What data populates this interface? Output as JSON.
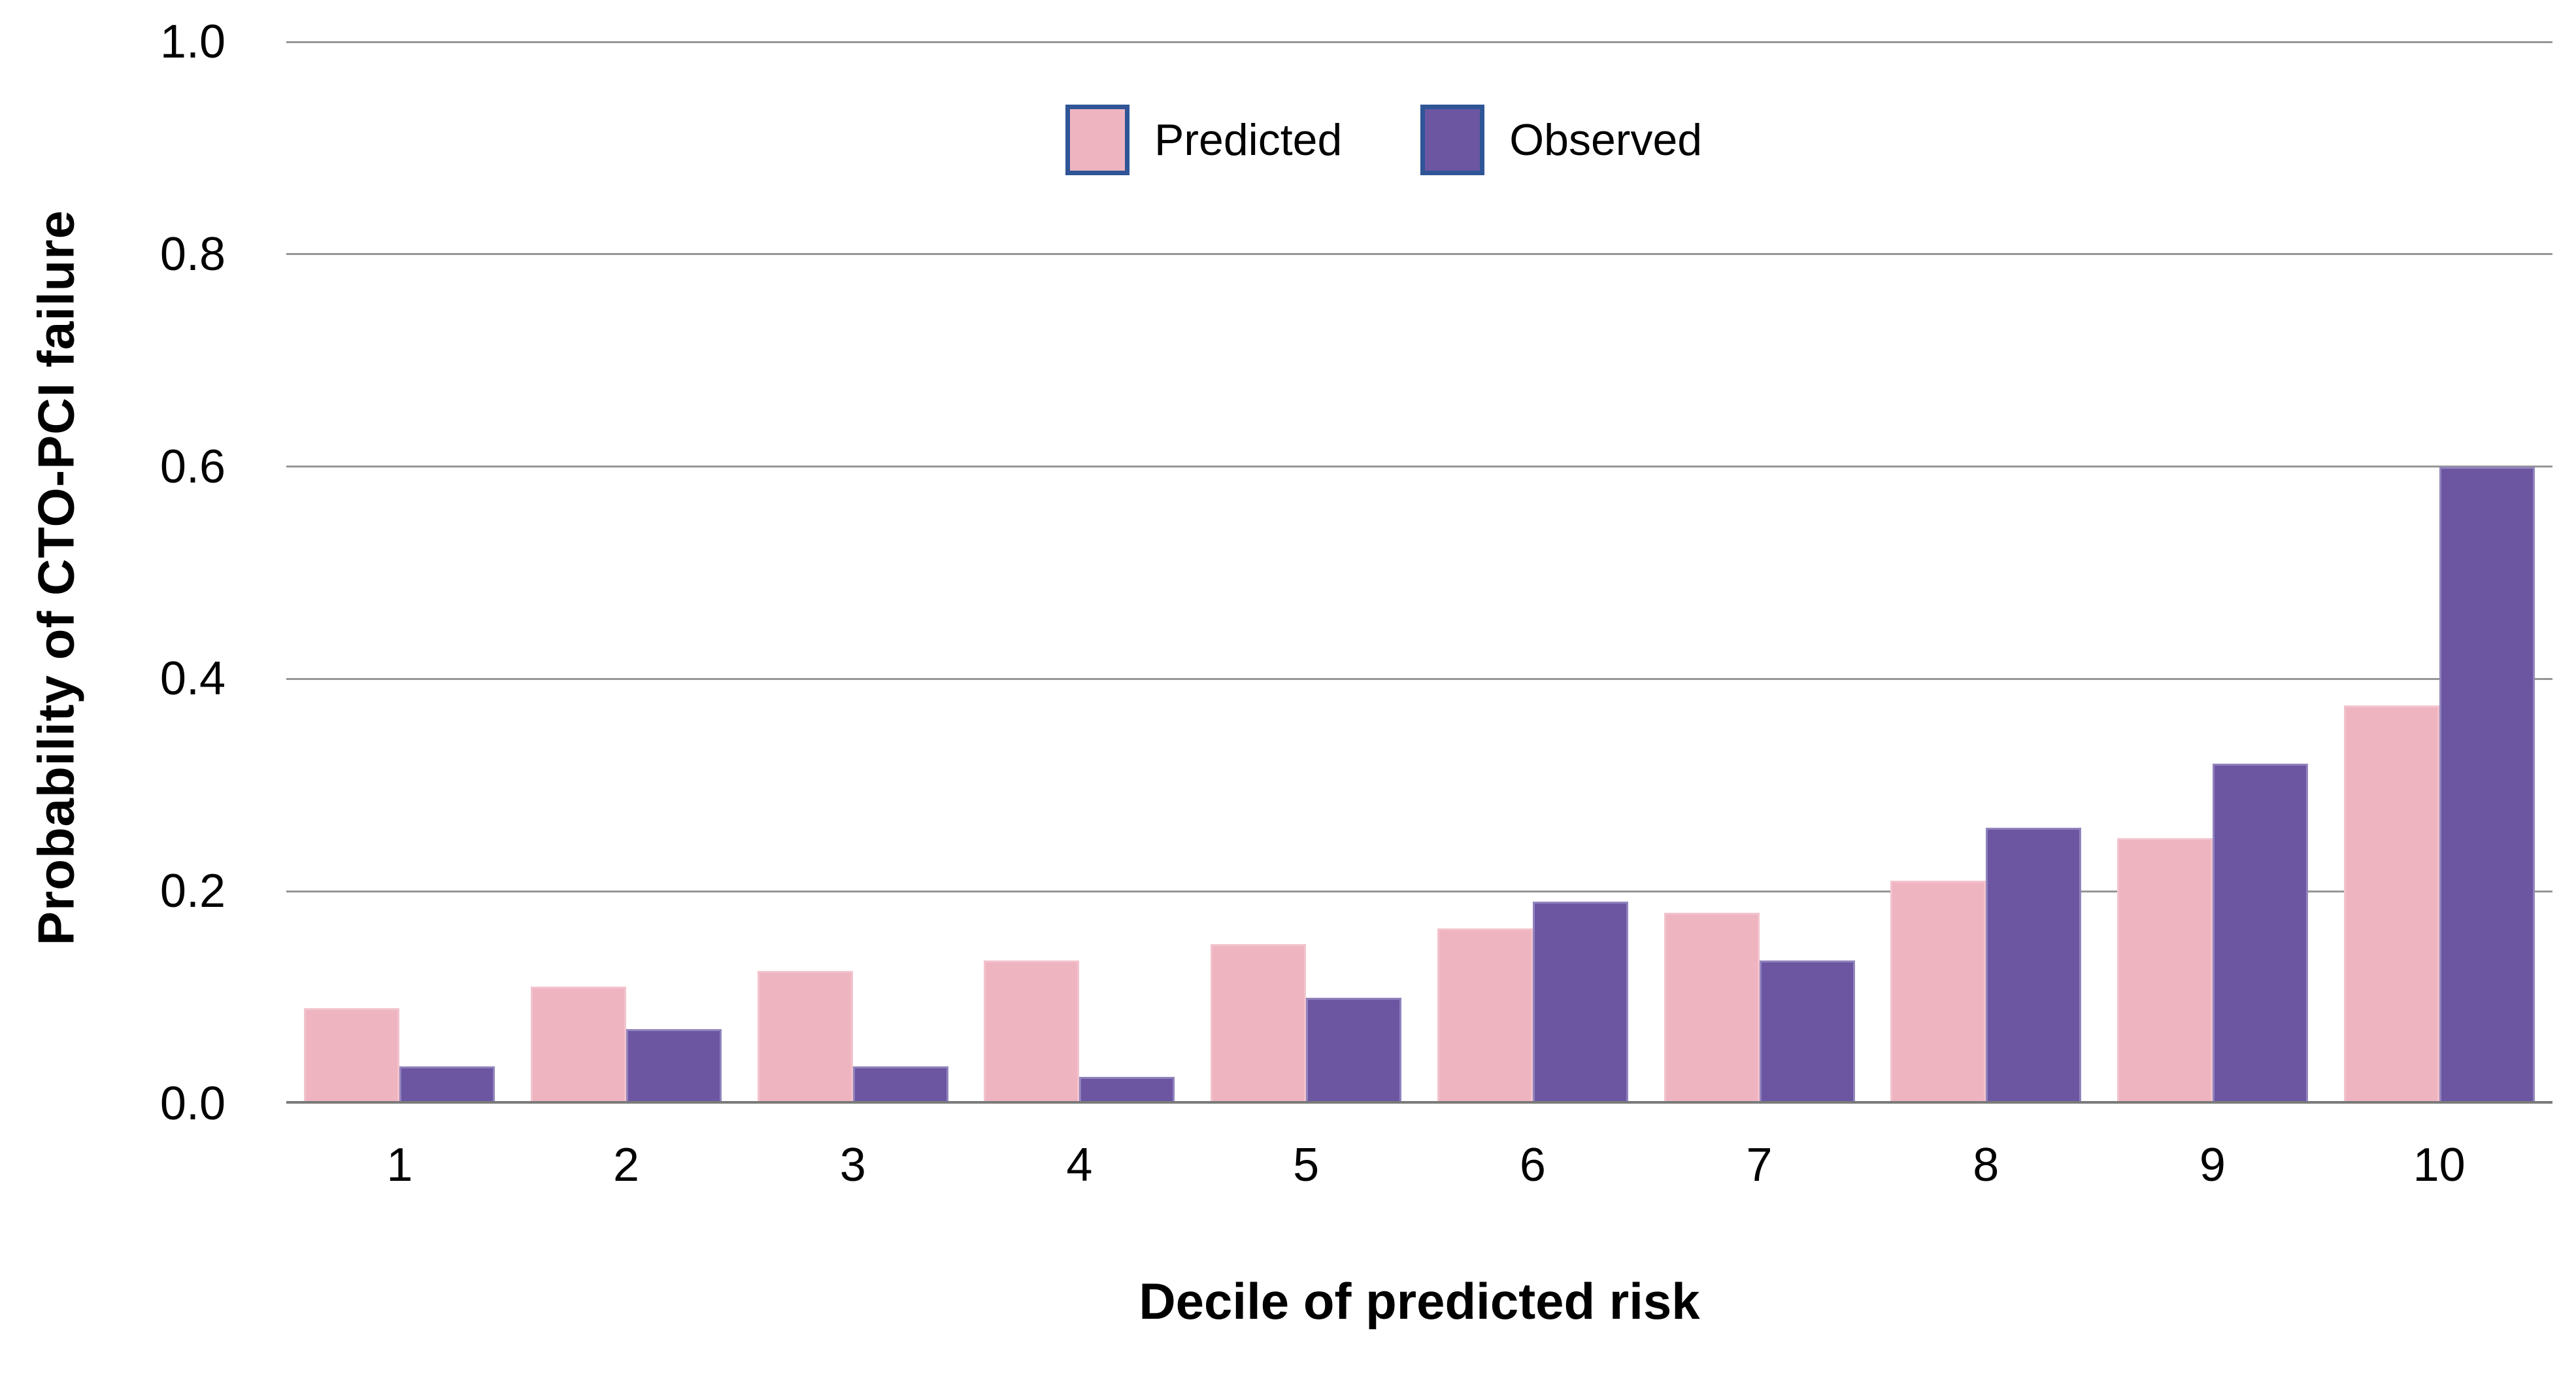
{
  "figure": {
    "background": "#ffffff",
    "text_color": "#000000"
  },
  "chart_data": {
    "type": "bar",
    "title": "",
    "categories": [
      "1",
      "2",
      "3",
      "4",
      "5",
      "6",
      "7",
      "8",
      "9",
      "10"
    ],
    "series": [
      {
        "name": "Predicted",
        "color": "#eeb4c0",
        "values": [
          0.09,
          0.11,
          0.125,
          0.135,
          0.15,
          0.165,
          0.18,
          0.21,
          0.25,
          0.375
        ]
      },
      {
        "name": "Observed",
        "color": "#6c56a2",
        "values": [
          0.035,
          0.07,
          0.035,
          0.025,
          0.1,
          0.19,
          0.135,
          0.26,
          0.32,
          0.6
        ]
      }
    ],
    "xlabel": "Decile of predicted risk",
    "ylabel": "Probability of CTO-PCI failure",
    "ylim": [
      0.0,
      1.0
    ],
    "yticks": [
      "0.0",
      "0.2",
      "0.4",
      "0.6",
      "0.8",
      "1.0"
    ],
    "grid": true,
    "legend_position": "top-center",
    "legend_swatch_border_color": "#2f5597",
    "gridline_color": "#969696",
    "axis_line_color": "#7a7a7a"
  }
}
